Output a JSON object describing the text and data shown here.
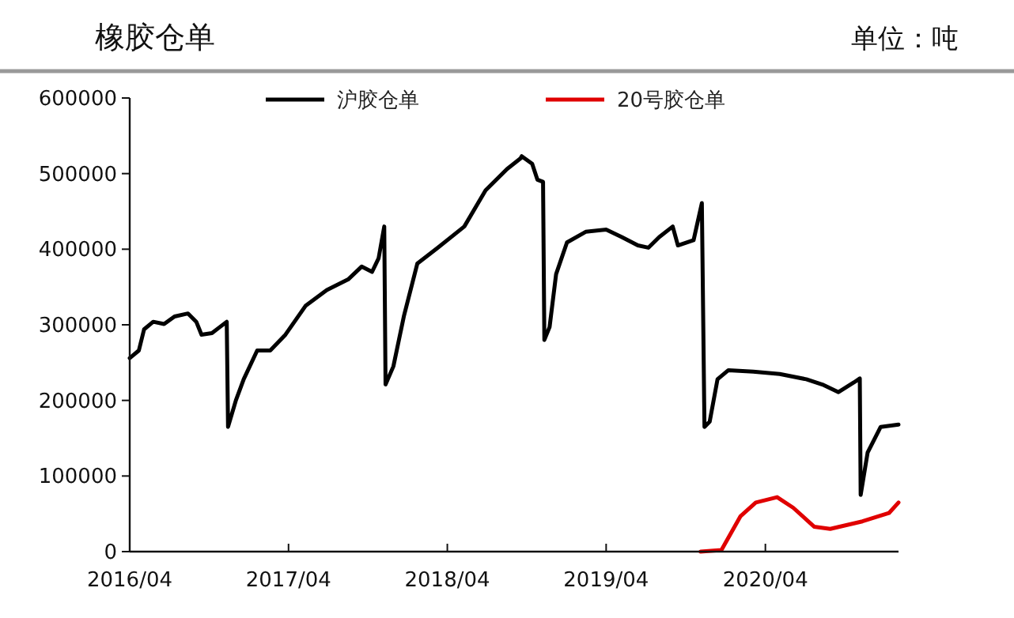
{
  "chart_data": {
    "type": "line",
    "title": "橡胶仓单",
    "annotations": [
      "单位：吨"
    ],
    "xlim": [
      "2016-04-01",
      "2021-02-01"
    ],
    "xticks": [
      {
        "value": "2016-04-01",
        "label": "2016/04"
      },
      {
        "value": "2017-04-01",
        "label": "2017/04"
      },
      {
        "value": "2018-04-01",
        "label": "2018/04"
      },
      {
        "value": "2019-04-01",
        "label": "2019/04"
      },
      {
        "value": "2020-04-01",
        "label": "2020/04"
      }
    ],
    "ylim": [
      0,
      600000
    ],
    "yticks": [
      0,
      100000,
      200000,
      300000,
      400000,
      500000,
      600000
    ],
    "grid": false,
    "legend": "top",
    "marker": "none",
    "line_style": "solid",
    "series": [
      {
        "name": "沪胶仓单",
        "color": "#000000",
        "x": [
          "2016-04-01",
          "2016-04-22",
          "2016-05-04",
          "2016-05-25",
          "2016-06-19",
          "2016-07-13",
          "2016-08-13",
          "2016-09-01",
          "2016-09-13",
          "2016-10-07",
          "2016-10-25",
          "2016-11-10",
          "2016-11-13",
          "2016-12-01",
          "2016-12-19",
          "2017-01-19",
          "2017-02-18",
          "2017-03-25",
          "2017-05-10",
          "2017-06-28",
          "2017-08-16",
          "2017-09-16",
          "2017-10-10",
          "2017-10-25",
          "2017-11-07",
          "2017-11-10",
          "2017-11-28",
          "2017-12-22",
          "2018-01-22",
          "2018-03-10",
          "2018-05-10",
          "2018-06-28",
          "2018-08-16",
          "2018-09-16",
          "2018-09-19",
          "2018-10-13",
          "2018-10-25",
          "2018-11-07",
          "2018-11-10",
          "2018-11-22",
          "2018-12-07",
          "2019-01-01",
          "2019-02-13",
          "2019-04-01",
          "2019-05-07",
          "2019-06-13",
          "2019-07-07",
          "2019-08-01",
          "2019-09-01",
          "2019-09-13",
          "2019-10-19",
          "2019-11-07",
          "2019-11-13",
          "2019-11-25",
          "2019-12-13",
          "2020-01-07",
          "2020-03-04",
          "2020-05-04",
          "2020-07-04",
          "2020-08-10",
          "2020-09-16",
          "2020-10-22",
          "2020-11-04",
          "2020-11-06",
          "2020-11-22",
          "2020-12-22",
          "2021-02-01"
        ],
        "values": [
          256000,
          266000,
          294000,
          304000,
          301000,
          311000,
          315000,
          304000,
          287000,
          289000,
          297000,
          304000,
          165000,
          200000,
          228000,
          266000,
          266000,
          287000,
          325000,
          346000,
          360000,
          377000,
          370000,
          388000,
          430000,
          221000,
          245000,
          311000,
          381000,
          402000,
          430000,
          478000,
          506000,
          520000,
          523000,
          513000,
          492000,
          489000,
          280000,
          297000,
          367000,
          409000,
          423000,
          426000,
          416000,
          405000,
          402000,
          416000,
          430000,
          405000,
          412000,
          461000,
          165000,
          172000,
          228000,
          240000,
          238000,
          235000,
          228000,
          221000,
          211000,
          224000,
          229000,
          75000,
          131000,
          165000,
          168000
        ]
      },
      {
        "name": "20号胶仓单",
        "color": "#e00000",
        "x": [
          "2019-11-04",
          "2019-12-22",
          "2020-02-04",
          "2020-03-10",
          "2020-04-28",
          "2020-06-04",
          "2020-07-22",
          "2020-08-28",
          "2020-11-10",
          "2021-01-10",
          "2021-02-01"
        ],
        "values": [
          0,
          2000,
          47000,
          65000,
          72000,
          58000,
          33000,
          30000,
          40000,
          51000,
          65000
        ]
      }
    ]
  }
}
